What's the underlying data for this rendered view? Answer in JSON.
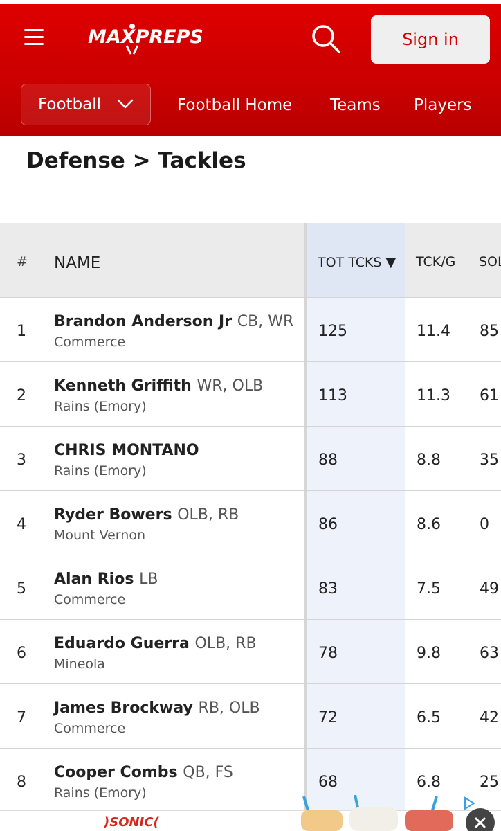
{
  "header": {
    "logo_text": "MAXPREPS",
    "signin_label": "Sign in"
  },
  "subnav": {
    "sport": "Football",
    "links": [
      "Football Home",
      "Teams",
      "Players"
    ]
  },
  "page_title": "Defense > Tackles",
  "table": {
    "columns": {
      "rank": "#",
      "name": "NAME",
      "tot": "TOT TCKS ▼",
      "tckg": "TCK/G",
      "solo": "SOLO"
    },
    "rows": [
      {
        "rank": "1",
        "name": "Brandon Anderson Jr",
        "pos": "CB, WR",
        "school": "Commerce",
        "tot": "125",
        "tckg": "11.4",
        "solo": "85"
      },
      {
        "rank": "2",
        "name": "Kenneth Griffith",
        "pos": "WR, OLB",
        "school": "Rains (Emory)",
        "tot": "113",
        "tckg": "11.3",
        "solo": "61"
      },
      {
        "rank": "3",
        "name": "CHRIS MONTANO",
        "pos": "",
        "school": "Rains (Emory)",
        "tot": "88",
        "tckg": "8.8",
        "solo": "35"
      },
      {
        "rank": "4",
        "name": "Ryder Bowers",
        "pos": "OLB, RB",
        "school": "Mount Vernon",
        "tot": "86",
        "tckg": "8.6",
        "solo": "0"
      },
      {
        "rank": "5",
        "name": "Alan Rios",
        "pos": "LB",
        "school": "Commerce",
        "tot": "83",
        "tckg": "7.5",
        "solo": "49"
      },
      {
        "rank": "6",
        "name": "Eduardo Guerra",
        "pos": "OLB, RB",
        "school": "Mineola",
        "tot": "78",
        "tckg": "9.8",
        "solo": "63"
      },
      {
        "rank": "7",
        "name": "James Brockway",
        "pos": "RB, OLB",
        "school": "Commerce",
        "tot": "72",
        "tckg": "6.5",
        "solo": "42"
      },
      {
        "rank": "8",
        "name": "Cooper Combs",
        "pos": "QB, FS",
        "school": "Rains (Emory)",
        "tot": "68",
        "tckg": "6.8",
        "solo": "25"
      }
    ]
  },
  "ad": {
    "brand": ")SONIC("
  },
  "colors": {
    "brand_red": "#cc0000",
    "signin_text": "#d50000",
    "sorted_column": "#eef3fb"
  }
}
